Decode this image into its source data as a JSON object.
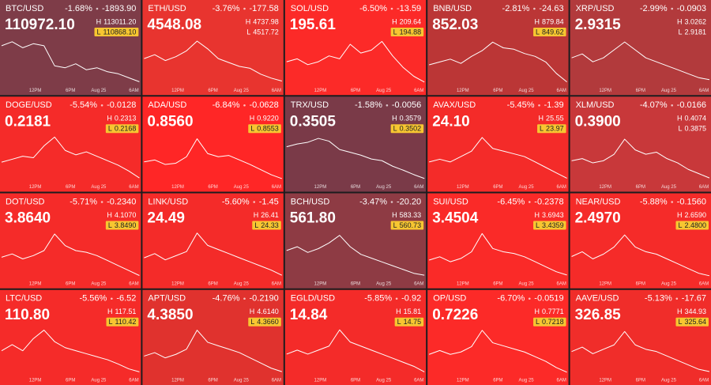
{
  "x_labels": [
    "12PM",
    "6PM",
    "Aug 25",
    "6AM"
  ],
  "high_mark": "H",
  "low_mark": "L",
  "tiles": [
    {
      "symbol": "BTC/USD",
      "change_pct": "-1.68%",
      "change": "-1893.90",
      "price": "110972.10",
      "high": "113011.20",
      "low": "110868.10",
      "low_highlight": true,
      "color": "#7e3c48",
      "trend": [
        112700,
        112900,
        112600,
        112800,
        112700,
        111700,
        111600,
        111800,
        111500,
        111600,
        111400,
        111300,
        111100,
        110900
      ]
    },
    {
      "symbol": "ETH/USD",
      "change_pct": "-3.76%",
      "change": "-177.58",
      "price": "4548.08",
      "high": "4737.98",
      "low": "4517.72",
      "low_highlight": false,
      "color": "#e8342f",
      "trend": [
        4640,
        4660,
        4630,
        4650,
        4680,
        4730,
        4690,
        4640,
        4620,
        4600,
        4590,
        4560,
        4540,
        4525
      ]
    },
    {
      "symbol": "SOL/USD",
      "change_pct": "-6.50%",
      "change": "-13.59",
      "price": "195.61",
      "high": "209.64",
      "low": "194.88",
      "low_highlight": true,
      "color": "#fc2a28",
      "trend": [
        202,
        203,
        201,
        202,
        204,
        203,
        208,
        205,
        206,
        209,
        204,
        200,
        197,
        195
      ]
    },
    {
      "symbol": "BNB/USD",
      "change_pct": "-2.81%",
      "change": "-24.63",
      "price": "852.03",
      "high": "879.84",
      "low": "849.62",
      "low_highlight": true,
      "color": "#bb3636",
      "trend": [
        862,
        864,
        866,
        863,
        868,
        872,
        878,
        874,
        873,
        870,
        868,
        864,
        856,
        850
      ]
    },
    {
      "symbol": "XRP/USD",
      "change_pct": "-2.99%",
      "change": "-0.0903",
      "price": "2.9315",
      "high": "3.0262",
      "low": "2.9181",
      "low_highlight": false,
      "color": "#b23a3c",
      "trend": [
        2.98,
        2.99,
        2.97,
        2.98,
        3.0,
        3.02,
        3.0,
        2.98,
        2.97,
        2.96,
        2.95,
        2.94,
        2.93,
        2.925
      ]
    },
    {
      "symbol": "DOGE/USD",
      "change_pct": "-5.54%",
      "change": "-0.0128",
      "price": "0.2181",
      "high": "0.2313",
      "low": "0.2168",
      "low_highlight": true,
      "color": "#f52b29",
      "trend": [
        0.2225,
        0.2235,
        0.2245,
        0.224,
        0.228,
        0.231,
        0.2265,
        0.225,
        0.226,
        0.2245,
        0.223,
        0.2215,
        0.2195,
        0.2172
      ]
    },
    {
      "symbol": "ADA/USD",
      "change_pct": "-6.84%",
      "change": "-0.0628",
      "price": "0.8560",
      "high": "0.9220",
      "low": "0.8553",
      "low_highlight": true,
      "color": "#ff2626",
      "trend": [
        0.882,
        0.885,
        0.878,
        0.88,
        0.89,
        0.918,
        0.895,
        0.89,
        0.892,
        0.885,
        0.878,
        0.87,
        0.862,
        0.856
      ]
    },
    {
      "symbol": "TRX/USD",
      "change_pct": "-1.58%",
      "change": "-0.0056",
      "price": "0.3505",
      "high": "0.3579",
      "low": "0.3502",
      "low_highlight": true,
      "color": "#7a3a48",
      "trend": [
        0.356,
        0.3565,
        0.3568,
        0.3575,
        0.357,
        0.3555,
        0.355,
        0.3545,
        0.3538,
        0.3535,
        0.3525,
        0.3518,
        0.351,
        0.3503
      ]
    },
    {
      "symbol": "AVAX/USD",
      "change_pct": "-5.45%",
      "change": "-1.39",
      "price": "24.10",
      "high": "25.55",
      "low": "23.97",
      "low_highlight": true,
      "color": "#f42b29",
      "trend": [
        24.6,
        24.7,
        24.6,
        24.8,
        25.0,
        25.5,
        25.1,
        25.0,
        24.9,
        24.8,
        24.6,
        24.4,
        24.2,
        24.0
      ]
    },
    {
      "symbol": "XLM/USD",
      "change_pct": "-4.07%",
      "change": "-0.0166",
      "price": "0.3900",
      "high": "0.4074",
      "low": "0.3875",
      "low_highlight": false,
      "color": "#c8383a",
      "trend": [
        0.396,
        0.397,
        0.395,
        0.396,
        0.399,
        0.406,
        0.401,
        0.399,
        0.4,
        0.397,
        0.395,
        0.392,
        0.39,
        0.388
      ]
    },
    {
      "symbol": "DOT/USD",
      "change_pct": "-5.71%",
      "change": "-0.2340",
      "price": "3.8640",
      "high": "4.1070",
      "low": "3.8490",
      "low_highlight": true,
      "color": "#f52b29",
      "trend": [
        3.96,
        3.98,
        3.95,
        3.97,
        4.0,
        4.1,
        4.03,
        4.0,
        3.99,
        3.97,
        3.94,
        3.91,
        3.88,
        3.85
      ]
    },
    {
      "symbol": "LINK/USD",
      "change_pct": "-5.60%",
      "change": "-1.45",
      "price": "24.49",
      "high": "26.41",
      "low": "24.33",
      "low_highlight": true,
      "color": "#f42b29",
      "trend": [
        25.2,
        25.4,
        25.1,
        25.3,
        25.5,
        26.4,
        25.8,
        25.6,
        25.4,
        25.2,
        25.0,
        24.8,
        24.6,
        24.35
      ]
    },
    {
      "symbol": "BCH/USD",
      "change_pct": "-3.47%",
      "change": "-20.20",
      "price": "561.80",
      "high": "583.33",
      "low": "560.73",
      "low_highlight": true,
      "color": "#8e3b44",
      "trend": [
        574,
        576,
        573,
        575,
        578,
        582,
        576,
        572,
        570,
        568,
        566,
        564,
        562,
        561
      ]
    },
    {
      "symbol": "SUI/USD",
      "change_pct": "-6.45%",
      "change": "-0.2378",
      "price": "3.4504",
      "high": "3.6943",
      "low": "3.4359",
      "low_highlight": true,
      "color": "#fa2a28",
      "trend": [
        3.53,
        3.55,
        3.52,
        3.54,
        3.58,
        3.69,
        3.6,
        3.58,
        3.57,
        3.55,
        3.52,
        3.49,
        3.46,
        3.44
      ]
    },
    {
      "symbol": "NEAR/USD",
      "change_pct": "-5.88%",
      "change": "-0.1560",
      "price": "2.4970",
      "high": "2.6590",
      "low": "2.4800",
      "low_highlight": true,
      "color": "#f52b29",
      "trend": [
        2.56,
        2.58,
        2.55,
        2.57,
        2.6,
        2.65,
        2.6,
        2.58,
        2.57,
        2.55,
        2.53,
        2.51,
        2.49,
        2.48
      ]
    },
    {
      "symbol": "LTC/USD",
      "change_pct": "-5.56%",
      "change": "-6.52",
      "price": "110.80",
      "high": "117.51",
      "low": "110.42",
      "low_highlight": true,
      "color": "#f52b29",
      "trend": [
        114.0,
        115.0,
        114.0,
        116.0,
        117.4,
        115.5,
        114.5,
        114.0,
        113.5,
        113.0,
        112.5,
        111.8,
        111.0,
        110.5
      ]
    },
    {
      "symbol": "APT/USD",
      "change_pct": "-4.76%",
      "change": "-0.2190",
      "price": "4.3850",
      "high": "4.6140",
      "low": "4.3660",
      "low_highlight": true,
      "color": "#e0322e",
      "trend": [
        4.46,
        4.48,
        4.45,
        4.47,
        4.5,
        4.61,
        4.54,
        4.52,
        4.5,
        4.48,
        4.45,
        4.42,
        4.39,
        4.37
      ]
    },
    {
      "symbol": "EGLD/USD",
      "change_pct": "-5.85%",
      "change": "-0.92",
      "price": "14.84",
      "high": "15.81",
      "low": "14.75",
      "low_highlight": true,
      "color": "#f42b29",
      "trend": [
        15.2,
        15.3,
        15.2,
        15.3,
        15.4,
        15.8,
        15.5,
        15.4,
        15.3,
        15.2,
        15.1,
        15.0,
        14.9,
        14.76
      ]
    },
    {
      "symbol": "OP/USD",
      "change_pct": "-6.70%",
      "change": "-0.0519",
      "price": "0.7226",
      "high": "0.7771",
      "low": "0.7218",
      "low_highlight": true,
      "color": "#fc2a28",
      "trend": [
        0.745,
        0.75,
        0.745,
        0.748,
        0.755,
        0.776,
        0.76,
        0.756,
        0.752,
        0.748,
        0.742,
        0.736,
        0.728,
        0.722
      ]
    },
    {
      "symbol": "AAVE/USD",
      "change_pct": "-5.13%",
      "change": "-17.67",
      "price": "326.85",
      "high": "344.93",
      "low": "325.64",
      "low_highlight": true,
      "color": "#f02d2a",
      "trend": [
        335,
        337,
        334,
        336,
        338,
        344,
        338,
        336,
        335,
        333,
        331,
        329,
        327,
        326
      ]
    }
  ]
}
